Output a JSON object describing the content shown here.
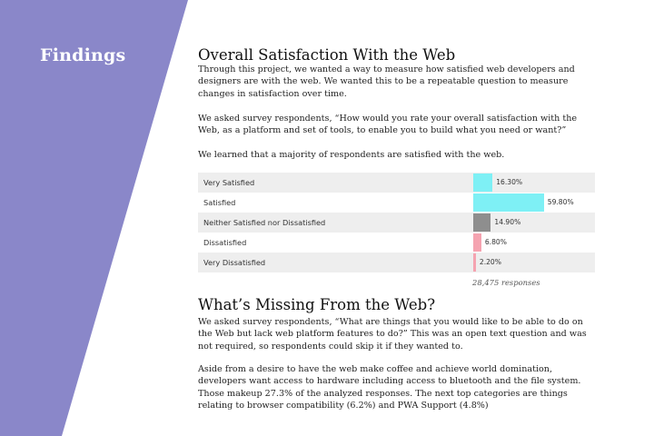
{
  "sidebar": {
    "title": "Findings",
    "color": "#8a87c9"
  },
  "section1": {
    "heading": "Overall Satisfaction With the Web",
    "paragraphs": [
      "Through this project, we wanted a way to measure how satisfied web developers and designers are with the web. We wanted this to be a repeatable question to measure changes in satisfaction over time.",
      "We asked survey respondents, “How would you rate your overall satisfaction with the Web, as a platform and set of tools, to enable you to build what you need or want?”",
      "We learned that a majority of respondents are satisfied with the web."
    ]
  },
  "chart_data": {
    "type": "bar",
    "orientation": "horizontal",
    "categories": [
      "Very Satisfied",
      "Satisfied",
      "Neither Satisfied nor Dissatisfied",
      "Dissatisfied",
      "Very Dissatisfied"
    ],
    "values": [
      16.3,
      59.8,
      14.9,
      6.8,
      2.2
    ],
    "value_labels": [
      "16.30%",
      "59.80%",
      "14.90%",
      "6.80%",
      "2.20%"
    ],
    "colors": [
      "#7ef0f5",
      "#7ef0f5",
      "#8e8e8e",
      "#f5a3b0",
      "#f5a3b0"
    ],
    "xlim": [
      0,
      100
    ],
    "footnote": "28,475 responses"
  },
  "section2": {
    "heading": "What’s Missing From the Web?",
    "paragraphs": [
      "We asked survey respondents, “What are things that you would like to be able to do on the Web but lack web platform features to do?” This was an open text question and was not required, so respondents could skip it if they wanted to.",
      "Aside from a desire to have the web make coffee and achieve world domination, developers want access to hardware including access to bluetooth and the file system. Those makeup 27.3% of the analyzed responses. The next top categories are things relating to browser compatibility (6.2%) and PWA Support (4.8%)"
    ]
  }
}
